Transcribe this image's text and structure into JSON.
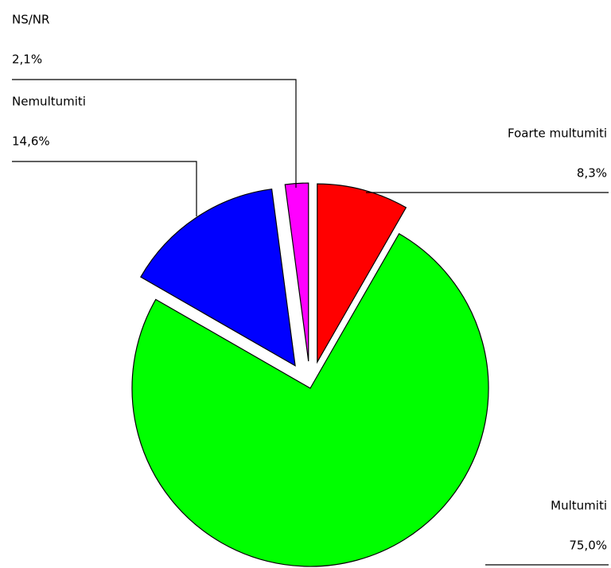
{
  "chart_data": {
    "type": "pie",
    "categories": [
      "Foarte multumiti",
      "Multumiti",
      "Nemultumiti",
      "NS/NR"
    ],
    "values": [
      8.3,
      75.0,
      14.6,
      2.1
    ],
    "value_labels": [
      "8,3%",
      "75,0%",
      "14,6%",
      "2,1%"
    ],
    "colors": [
      "#ff0000",
      "#00ff00",
      "#0000ff",
      "#ff00ff"
    ],
    "exploded": [
      true,
      false,
      true,
      true
    ]
  }
}
